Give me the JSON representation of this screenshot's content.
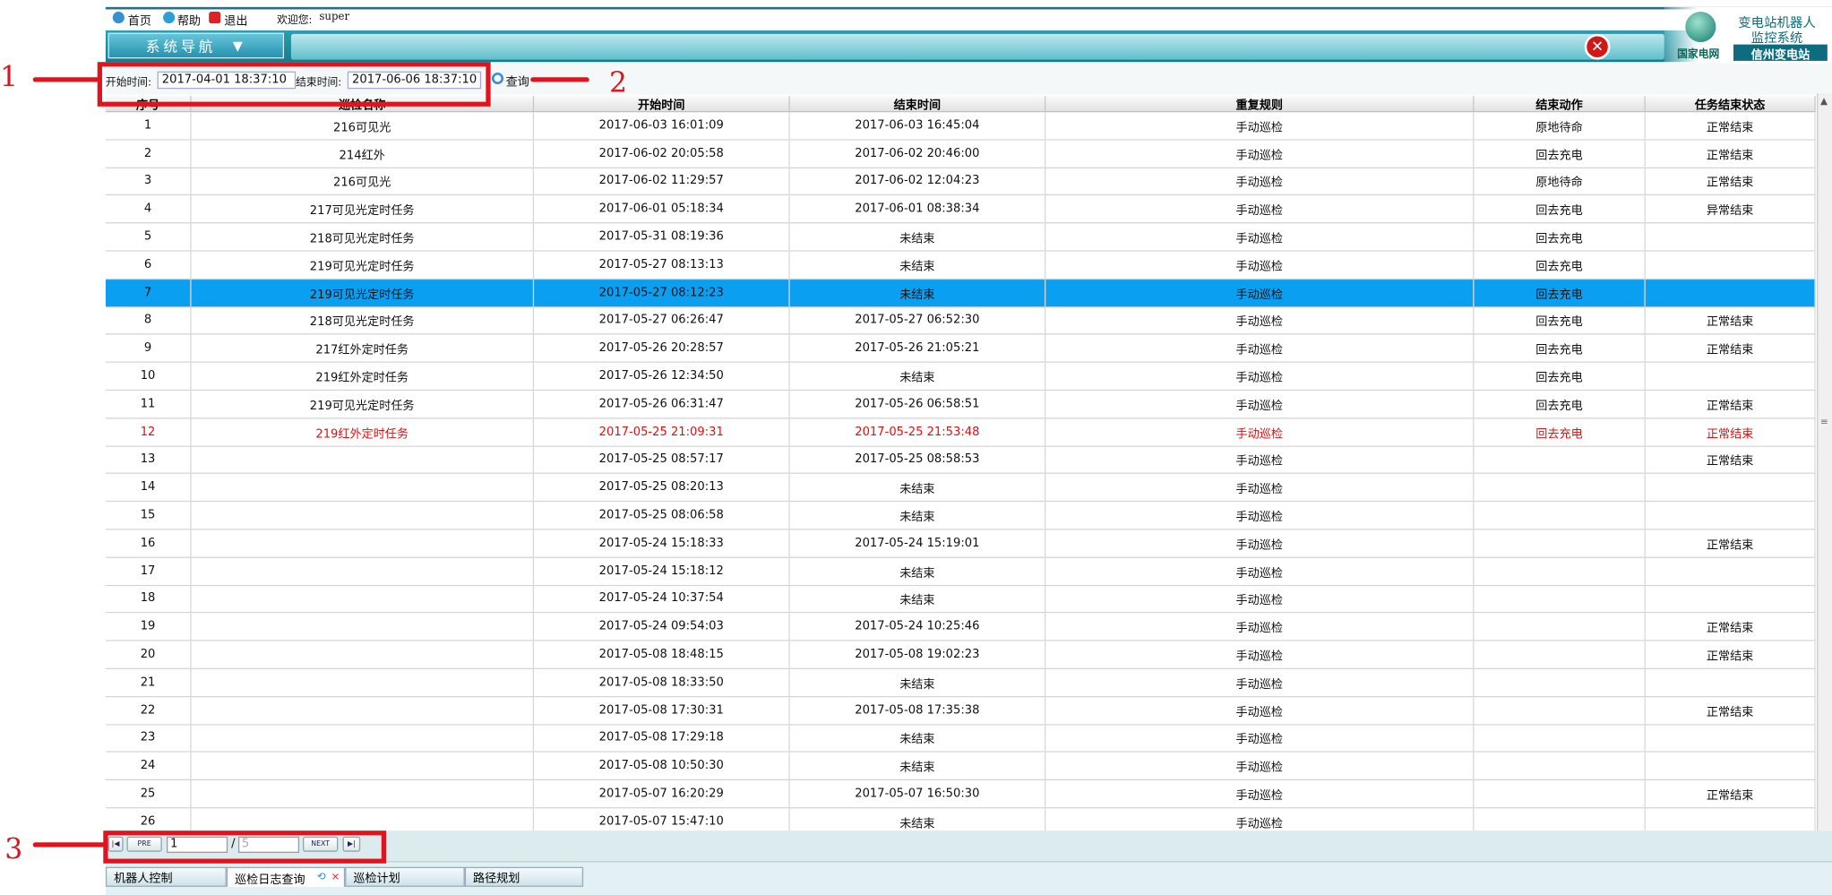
{
  "topbar": {
    "links": [
      "首页",
      "帮助",
      "退出"
    ],
    "welcome": "欢迎您:",
    "user": "super"
  },
  "nav": {
    "menu": "系统导航"
  },
  "logo": {
    "title_line1": "变电站机器人",
    "title_line2": "监控系统",
    "brand": "国家电网",
    "station": "信州变电站"
  },
  "filter": {
    "start_label": "开始时间:",
    "start_value": "2017-04-01 18:37:10",
    "end_label": "结束时间:",
    "end_value": "2017-06-06 18:37:10",
    "query": "查询"
  },
  "table": {
    "headers": [
      "序号",
      "巡检名称",
      "开始时间",
      "结束时间",
      "重复规则",
      "结束动作",
      "任务结束状态"
    ],
    "rows": [
      {
        "cells": [
          "1",
          "216可见光",
          "2017-06-03 16:01:09",
          "2017-06-03 16:45:04",
          "手动巡检",
          "原地待命",
          "正常结束"
        ]
      },
      {
        "cells": [
          "2",
          "214红外",
          "2017-06-02 20:05:58",
          "2017-06-02 20:46:00",
          "手动巡检",
          "回去充电",
          "正常结束"
        ]
      },
      {
        "cells": [
          "3",
          "216可见光",
          "2017-06-02 11:29:57",
          "2017-06-02 12:04:23",
          "手动巡检",
          "原地待命",
          "正常结束"
        ]
      },
      {
        "cells": [
          "4",
          "217可见光定时任务",
          "2017-06-01 05:18:34",
          "2017-06-01 08:38:34",
          "手动巡检",
          "回去充电",
          "异常结束"
        ]
      },
      {
        "cells": [
          "5",
          "218可见光定时任务",
          "2017-05-31 08:19:36",
          "未结束",
          "手动巡检",
          "回去充电",
          null
        ]
      },
      {
        "cells": [
          "6",
          "219可见光定时任务",
          "2017-05-27 08:13:13",
          "未结束",
          "手动巡检",
          "回去充电",
          null
        ]
      },
      {
        "cells": [
          "7",
          "219可见光定时任务",
          "2017-05-27 08:12:23",
          "未结束",
          "手动巡检",
          "回去充电",
          null
        ],
        "state": "selected"
      },
      {
        "cells": [
          "8",
          "218可见光定时任务",
          "2017-05-27 06:26:47",
          "2017-05-27 06:52:30",
          "手动巡检",
          "回去充电",
          "正常结束"
        ]
      },
      {
        "cells": [
          "9",
          "217红外定时任务",
          "2017-05-26 20:28:57",
          "2017-05-26 21:05:21",
          "手动巡检",
          "回去充电",
          "正常结束"
        ]
      },
      {
        "cells": [
          "10",
          "219红外定时任务",
          "2017-05-26 12:34:50",
          "未结束",
          "手动巡检",
          "回去充电",
          null
        ]
      },
      {
        "cells": [
          "11",
          "219可见光定时任务",
          "2017-05-26 06:31:47",
          "2017-05-26 06:58:51",
          "手动巡检",
          "回去充电",
          "正常结束"
        ]
      },
      {
        "cells": [
          "12",
          "219红外定时任务",
          "2017-05-25 21:09:31",
          "2017-05-25 21:53:48",
          "手动巡检",
          "回去充电",
          "正常结束"
        ],
        "state": "alert"
      },
      {
        "cells": [
          "13",
          null,
          "2017-05-25 08:57:17",
          "2017-05-25 08:58:53",
          "手动巡检",
          null,
          "正常结束"
        ]
      },
      {
        "cells": [
          "14",
          null,
          "2017-05-25 08:20:13",
          "未结束",
          "手动巡检",
          null,
          null
        ]
      },
      {
        "cells": [
          "15",
          null,
          "2017-05-25 08:06:58",
          "未结束",
          "手动巡检",
          null,
          null
        ]
      },
      {
        "cells": [
          "16",
          null,
          "2017-05-24 15:18:33",
          "2017-05-24 15:19:01",
          "手动巡检",
          null,
          "正常结束"
        ]
      },
      {
        "cells": [
          "17",
          null,
          "2017-05-24 15:18:12",
          "未结束",
          "手动巡检",
          null,
          null
        ]
      },
      {
        "cells": [
          "18",
          null,
          "2017-05-24 10:37:54",
          "未结束",
          "手动巡检",
          null,
          null
        ]
      },
      {
        "cells": [
          "19",
          null,
          "2017-05-24 09:54:03",
          "2017-05-24 10:25:46",
          "手动巡检",
          null,
          "正常结束"
        ]
      },
      {
        "cells": [
          "20",
          null,
          "2017-05-08 18:48:15",
          "2017-05-08 19:02:23",
          "手动巡检",
          null,
          "正常结束"
        ]
      },
      {
        "cells": [
          "21",
          null,
          "2017-05-08 18:33:50",
          "未结束",
          "手动巡检",
          null,
          null
        ]
      },
      {
        "cells": [
          "22",
          null,
          "2017-05-08 17:30:31",
          "2017-05-08 17:35:38",
          "手动巡检",
          null,
          "正常结束"
        ]
      },
      {
        "cells": [
          "23",
          null,
          "2017-05-08 17:29:18",
          "未结束",
          "手动巡检",
          null,
          null
        ]
      },
      {
        "cells": [
          "24",
          null,
          "2017-05-08 10:50:30",
          "未结束",
          "手动巡检",
          null,
          null
        ]
      },
      {
        "cells": [
          "25",
          null,
          "2017-05-07 16:20:29",
          "2017-05-07 16:50:30",
          "手动巡检",
          null,
          "正常结束"
        ]
      },
      {
        "cells": [
          "26",
          null,
          "2017-05-07 15:47:10",
          "未结束",
          "手动巡检",
          null,
          null
        ]
      }
    ]
  },
  "pagination": {
    "prev": "PRE",
    "page": "1",
    "separator": "/",
    "pages": "5",
    "next": "NEXT"
  },
  "tabs": [
    "机器人控制",
    "巡检日志查询",
    "巡检计划",
    "路径规划"
  ],
  "annotations": [
    "1",
    "2",
    "3"
  ]
}
